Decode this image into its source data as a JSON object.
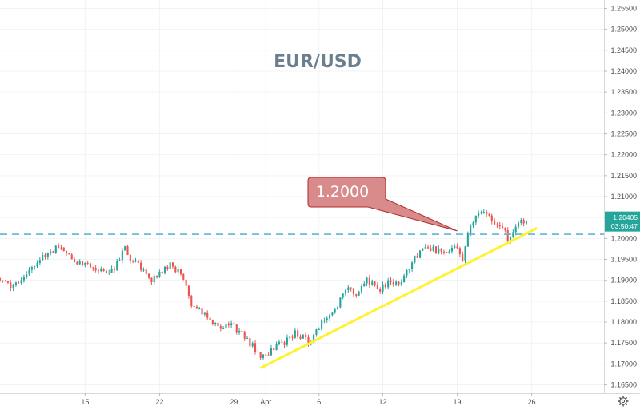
{
  "chart_data": {
    "type": "candlestick",
    "title": "EUR/USD",
    "y_ticks": [
      "1.25500",
      "1.25000",
      "1.24500",
      "1.24000",
      "1.23500",
      "1.23000",
      "1.22500",
      "1.22000",
      "1.21500",
      "1.21000",
      "1.20500",
      "1.20000",
      "1.19500",
      "1.19000",
      "1.18500",
      "1.18000",
      "1.17500",
      "1.17000",
      "1.16500"
    ],
    "x_ticks": [
      {
        "label": "15",
        "day": 15
      },
      {
        "label": "22",
        "day": 22
      },
      {
        "label": "29",
        "day": 29
      },
      {
        "label": "Apr",
        "day": 32
      },
      {
        "label": "6",
        "day": 37
      },
      {
        "label": "12",
        "day": 43
      },
      {
        "label": "19",
        "day": 50
      },
      {
        "label": "26",
        "day": 57
      }
    ],
    "ylim": [
      1.163,
      1.257
    ],
    "xlim": [
      7.0,
      63.8
    ],
    "price_path": [
      [
        7.0,
        1.1905
      ],
      [
        8.5,
        1.1885
      ],
      [
        9.8,
        1.1915
      ],
      [
        11.0,
        1.1955
      ],
      [
        12.0,
        1.1965
      ],
      [
        13.0,
        1.1985
      ],
      [
        13.7,
        1.1955
      ],
      [
        14.5,
        1.1945
      ],
      [
        15.5,
        1.1935
      ],
      [
        16.5,
        1.1925
      ],
      [
        17.5,
        1.1915
      ],
      [
        18.5,
        1.195
      ],
      [
        19.0,
        1.1985
      ],
      [
        19.5,
        1.195
      ],
      [
        20.5,
        1.193
      ],
      [
        21.5,
        1.19
      ],
      [
        22.5,
        1.192
      ],
      [
        23.2,
        1.194
      ],
      [
        24.0,
        1.192
      ],
      [
        24.7,
        1.1885
      ],
      [
        25.3,
        1.184
      ],
      [
        26.0,
        1.183
      ],
      [
        27.0,
        1.1805
      ],
      [
        28.0,
        1.178
      ],
      [
        28.5,
        1.1795
      ],
      [
        29.0,
        1.179
      ],
      [
        30.0,
        1.1775
      ],
      [
        30.5,
        1.1755
      ],
      [
        31.3,
        1.1735
      ],
      [
        32.0,
        1.1715
      ],
      [
        32.5,
        1.1725
      ],
      [
        33.2,
        1.1745
      ],
      [
        34.0,
        1.175
      ],
      [
        35.0,
        1.1775
      ],
      [
        36.0,
        1.176
      ],
      [
        36.5,
        1.175
      ],
      [
        37.3,
        1.179
      ],
      [
        37.9,
        1.181
      ],
      [
        38.5,
        1.1825
      ],
      [
        39.2,
        1.185
      ],
      [
        39.9,
        1.188
      ],
      [
        40.8,
        1.187
      ],
      [
        41.5,
        1.19
      ],
      [
        42.2,
        1.1895
      ],
      [
        43.0,
        1.188
      ],
      [
        43.8,
        1.1895
      ],
      [
        44.6,
        1.189
      ],
      [
        45.4,
        1.1915
      ],
      [
        46.2,
        1.195
      ],
      [
        47.0,
        1.197
      ],
      [
        47.8,
        1.1975
      ],
      [
        48.5,
        1.197
      ],
      [
        49.0,
        1.196
      ],
      [
        49.6,
        1.197
      ],
      [
        50.2,
        1.198
      ],
      [
        50.7,
        1.1945
      ],
      [
        51.2,
        1.201
      ],
      [
        51.6,
        1.204
      ],
      [
        52.3,
        1.206
      ],
      [
        52.9,
        1.207
      ],
      [
        53.3,
        1.2045
      ],
      [
        53.9,
        1.2035
      ],
      [
        54.5,
        1.2025
      ],
      [
        55.0,
        1.2
      ],
      [
        55.5,
        1.2015
      ],
      [
        56.1,
        1.2035
      ],
      [
        56.6,
        1.204
      ]
    ],
    "horizontal_line": {
      "value": 1.201,
      "color": "#58b8d6",
      "style": "dashed"
    },
    "trendline": {
      "start": [
        31.5,
        1.169
      ],
      "end": [
        57.5,
        1.2025
      ],
      "color": "#fff232"
    },
    "callout": {
      "text": "1.2000",
      "pointer_to": [
        50.0,
        1.2018
      ]
    },
    "current_price": {
      "price": "1.20405",
      "countdown": "03:50:47",
      "value": 1.20405
    },
    "up_color": "#26a69a",
    "down_color": "#ef5350"
  },
  "toolbar": {
    "settings_icon": "gear-icon"
  }
}
